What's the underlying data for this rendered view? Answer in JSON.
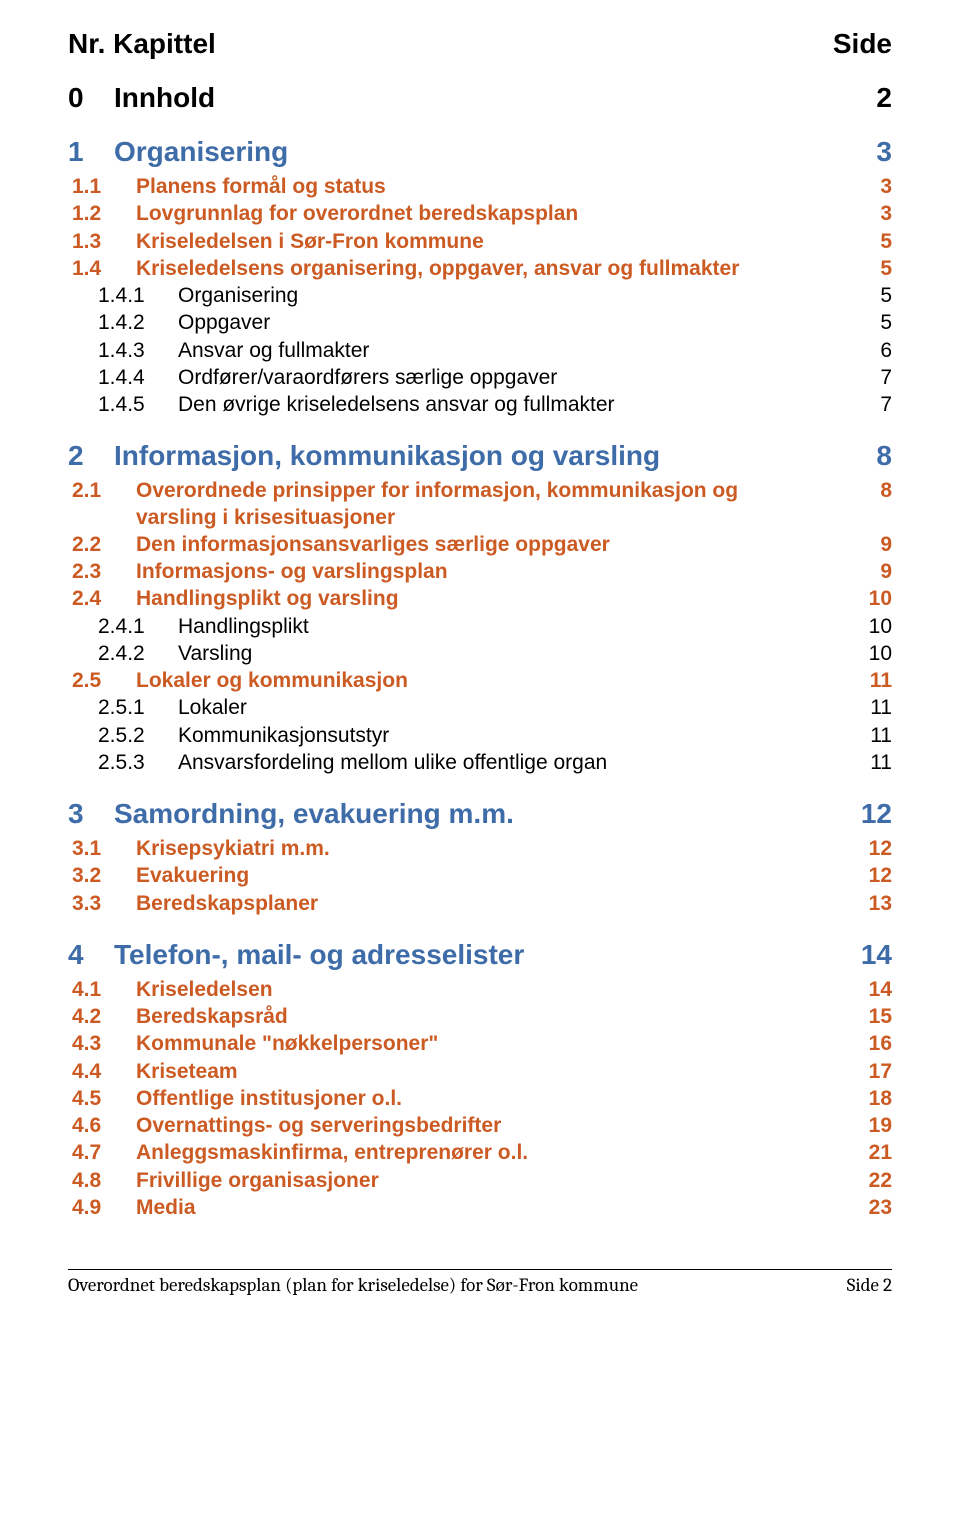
{
  "header": {
    "left": "Nr. Kapittel",
    "right": "Side"
  },
  "colors": {
    "section_head": "#3e6ca8",
    "level1": "#cc5a23",
    "level2": "#000000",
    "text": "#000000",
    "background": "#ffffff"
  },
  "typography": {
    "body_font": "Arial",
    "footer_font": "Cambria",
    "header_fontsize": 28,
    "section_head_fontsize": 28,
    "level1_fontsize": 21,
    "level2_fontsize": 21,
    "footer_fontsize": 19
  },
  "toc": [
    {
      "level": 0,
      "num": "0",
      "title": "Innhold",
      "page": "2"
    },
    {
      "level": "s",
      "num": "1",
      "title": "Organisering",
      "page": "3"
    },
    {
      "level": 1,
      "num": "1.1",
      "title": "Planens formål og status",
      "page": "3"
    },
    {
      "level": 1,
      "num": "1.2",
      "title": "Lovgrunnlag for overordnet beredskapsplan",
      "page": "3"
    },
    {
      "level": 1,
      "num": "1.3",
      "title": "Kriseledelsen i Sør-Fron kommune",
      "page": "5"
    },
    {
      "level": 1,
      "num": "1.4",
      "title": "Kriseledelsens organisering, oppgaver, ansvar og fullmakter",
      "page": "5"
    },
    {
      "level": 2,
      "num": "1.4.1",
      "title": "Organisering",
      "page": "5"
    },
    {
      "level": 2,
      "num": "1.4.2",
      "title": "Oppgaver",
      "page": "5"
    },
    {
      "level": 2,
      "num": "1.4.3",
      "title": "Ansvar og fullmakter",
      "page": "6"
    },
    {
      "level": 2,
      "num": "1.4.4",
      "title": "Ordfører/varaordførers særlige oppgaver",
      "page": "7"
    },
    {
      "level": 2,
      "num": "1.4.5",
      "title": "Den øvrige kriseledelsens ansvar og fullmakter",
      "page": "7"
    },
    {
      "level": "s",
      "num": "2",
      "title": "Informasjon, kommunikasjon og varsling",
      "page": "8"
    },
    {
      "level": 1,
      "num": "2.1",
      "title": "Overordnede prinsipper for informasjon, kommunikasjon og",
      "title_cont": "varsling i krisesituasjoner",
      "page": "8"
    },
    {
      "level": 1,
      "num": "2.2",
      "title": "Den informasjonsansvarliges særlige oppgaver",
      "page": "9"
    },
    {
      "level": 1,
      "num": "2.3",
      "title": "Informasjons- og varslingsplan",
      "page": "9"
    },
    {
      "level": 1,
      "num": "2.4",
      "title": "Handlingsplikt og varsling",
      "page": "10"
    },
    {
      "level": 2,
      "num": "2.4.1",
      "title": "Handlingsplikt",
      "page": "10"
    },
    {
      "level": 2,
      "num": "2.4.2",
      "title": "Varsling",
      "page": "10"
    },
    {
      "level": 1,
      "num": "2.5",
      "title": "Lokaler og kommunikasjon",
      "page": "11"
    },
    {
      "level": 2,
      "num": "2.5.1",
      "title": "Lokaler",
      "page": "11"
    },
    {
      "level": 2,
      "num": "2.5.2",
      "title": "Kommunikasjonsutstyr",
      "page": "11"
    },
    {
      "level": 2,
      "num": "2.5.3",
      "title": "Ansvarsfordeling mellom ulike offentlige organ",
      "page": "11"
    },
    {
      "level": "s",
      "num": "3",
      "title": "Samordning, evakuering m.m.",
      "page": "12"
    },
    {
      "level": 1,
      "num": "3.1",
      "title": "Krisepsykiatri m.m.",
      "page": "12"
    },
    {
      "level": 1,
      "num": "3.2",
      "title": "Evakuering",
      "page": "12"
    },
    {
      "level": 1,
      "num": "3.3",
      "title": "Beredskapsplaner",
      "page": "13"
    },
    {
      "level": "s",
      "num": "4",
      "title": "Telefon-, mail- og adresselister",
      "page": "14"
    },
    {
      "level": 1,
      "num": "4.1",
      "title": "Kriseledelsen",
      "page": "14"
    },
    {
      "level": 1,
      "num": "4.2",
      "title": "Beredskapsråd",
      "page": "15"
    },
    {
      "level": 1,
      "num": "4.3",
      "title": "Kommunale \"nøkkelpersoner\"",
      "page": "16"
    },
    {
      "level": 1,
      "num": "4.4",
      "title": "Kriseteam",
      "page": "17"
    },
    {
      "level": 1,
      "num": "4.5",
      "title": "Offentlige institusjoner o.l.",
      "page": "18"
    },
    {
      "level": 1,
      "num": "4.6",
      "title": "Overnattings- og serveringsbedrifter",
      "page": "19"
    },
    {
      "level": 1,
      "num": "4.7",
      "title": "Anleggsmaskinfirma, entreprenører o.l.",
      "page": "21"
    },
    {
      "level": 1,
      "num": "4.8",
      "title": "Frivillige organisasjoner",
      "page": "22"
    },
    {
      "level": 1,
      "num": "4.9",
      "title": "Media",
      "page": "23"
    }
  ],
  "footer": {
    "left": "Overordnet beredskapsplan (plan for kriseledelse) for Sør-Fron kommune",
    "right": "Side 2"
  }
}
